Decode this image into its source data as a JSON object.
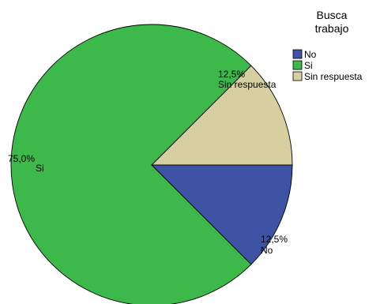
{
  "chart_data": {
    "type": "pie",
    "legend_title": [
      "Busca",
      "trabajo"
    ],
    "legend_position": "top-right",
    "start": "3 o'clock",
    "direction": "clockwise",
    "slices": [
      {
        "name": "No",
        "value": 12.5,
        "percent_label": "12,5%",
        "color": "#3f53a5"
      },
      {
        "name": "Si",
        "value": 75.0,
        "percent_label": "75,0%",
        "color": "#3cb94a"
      },
      {
        "name": "Sin respuesta",
        "value": 12.5,
        "percent_label": "12,5%",
        "color": "#d8cfa0"
      }
    ]
  }
}
